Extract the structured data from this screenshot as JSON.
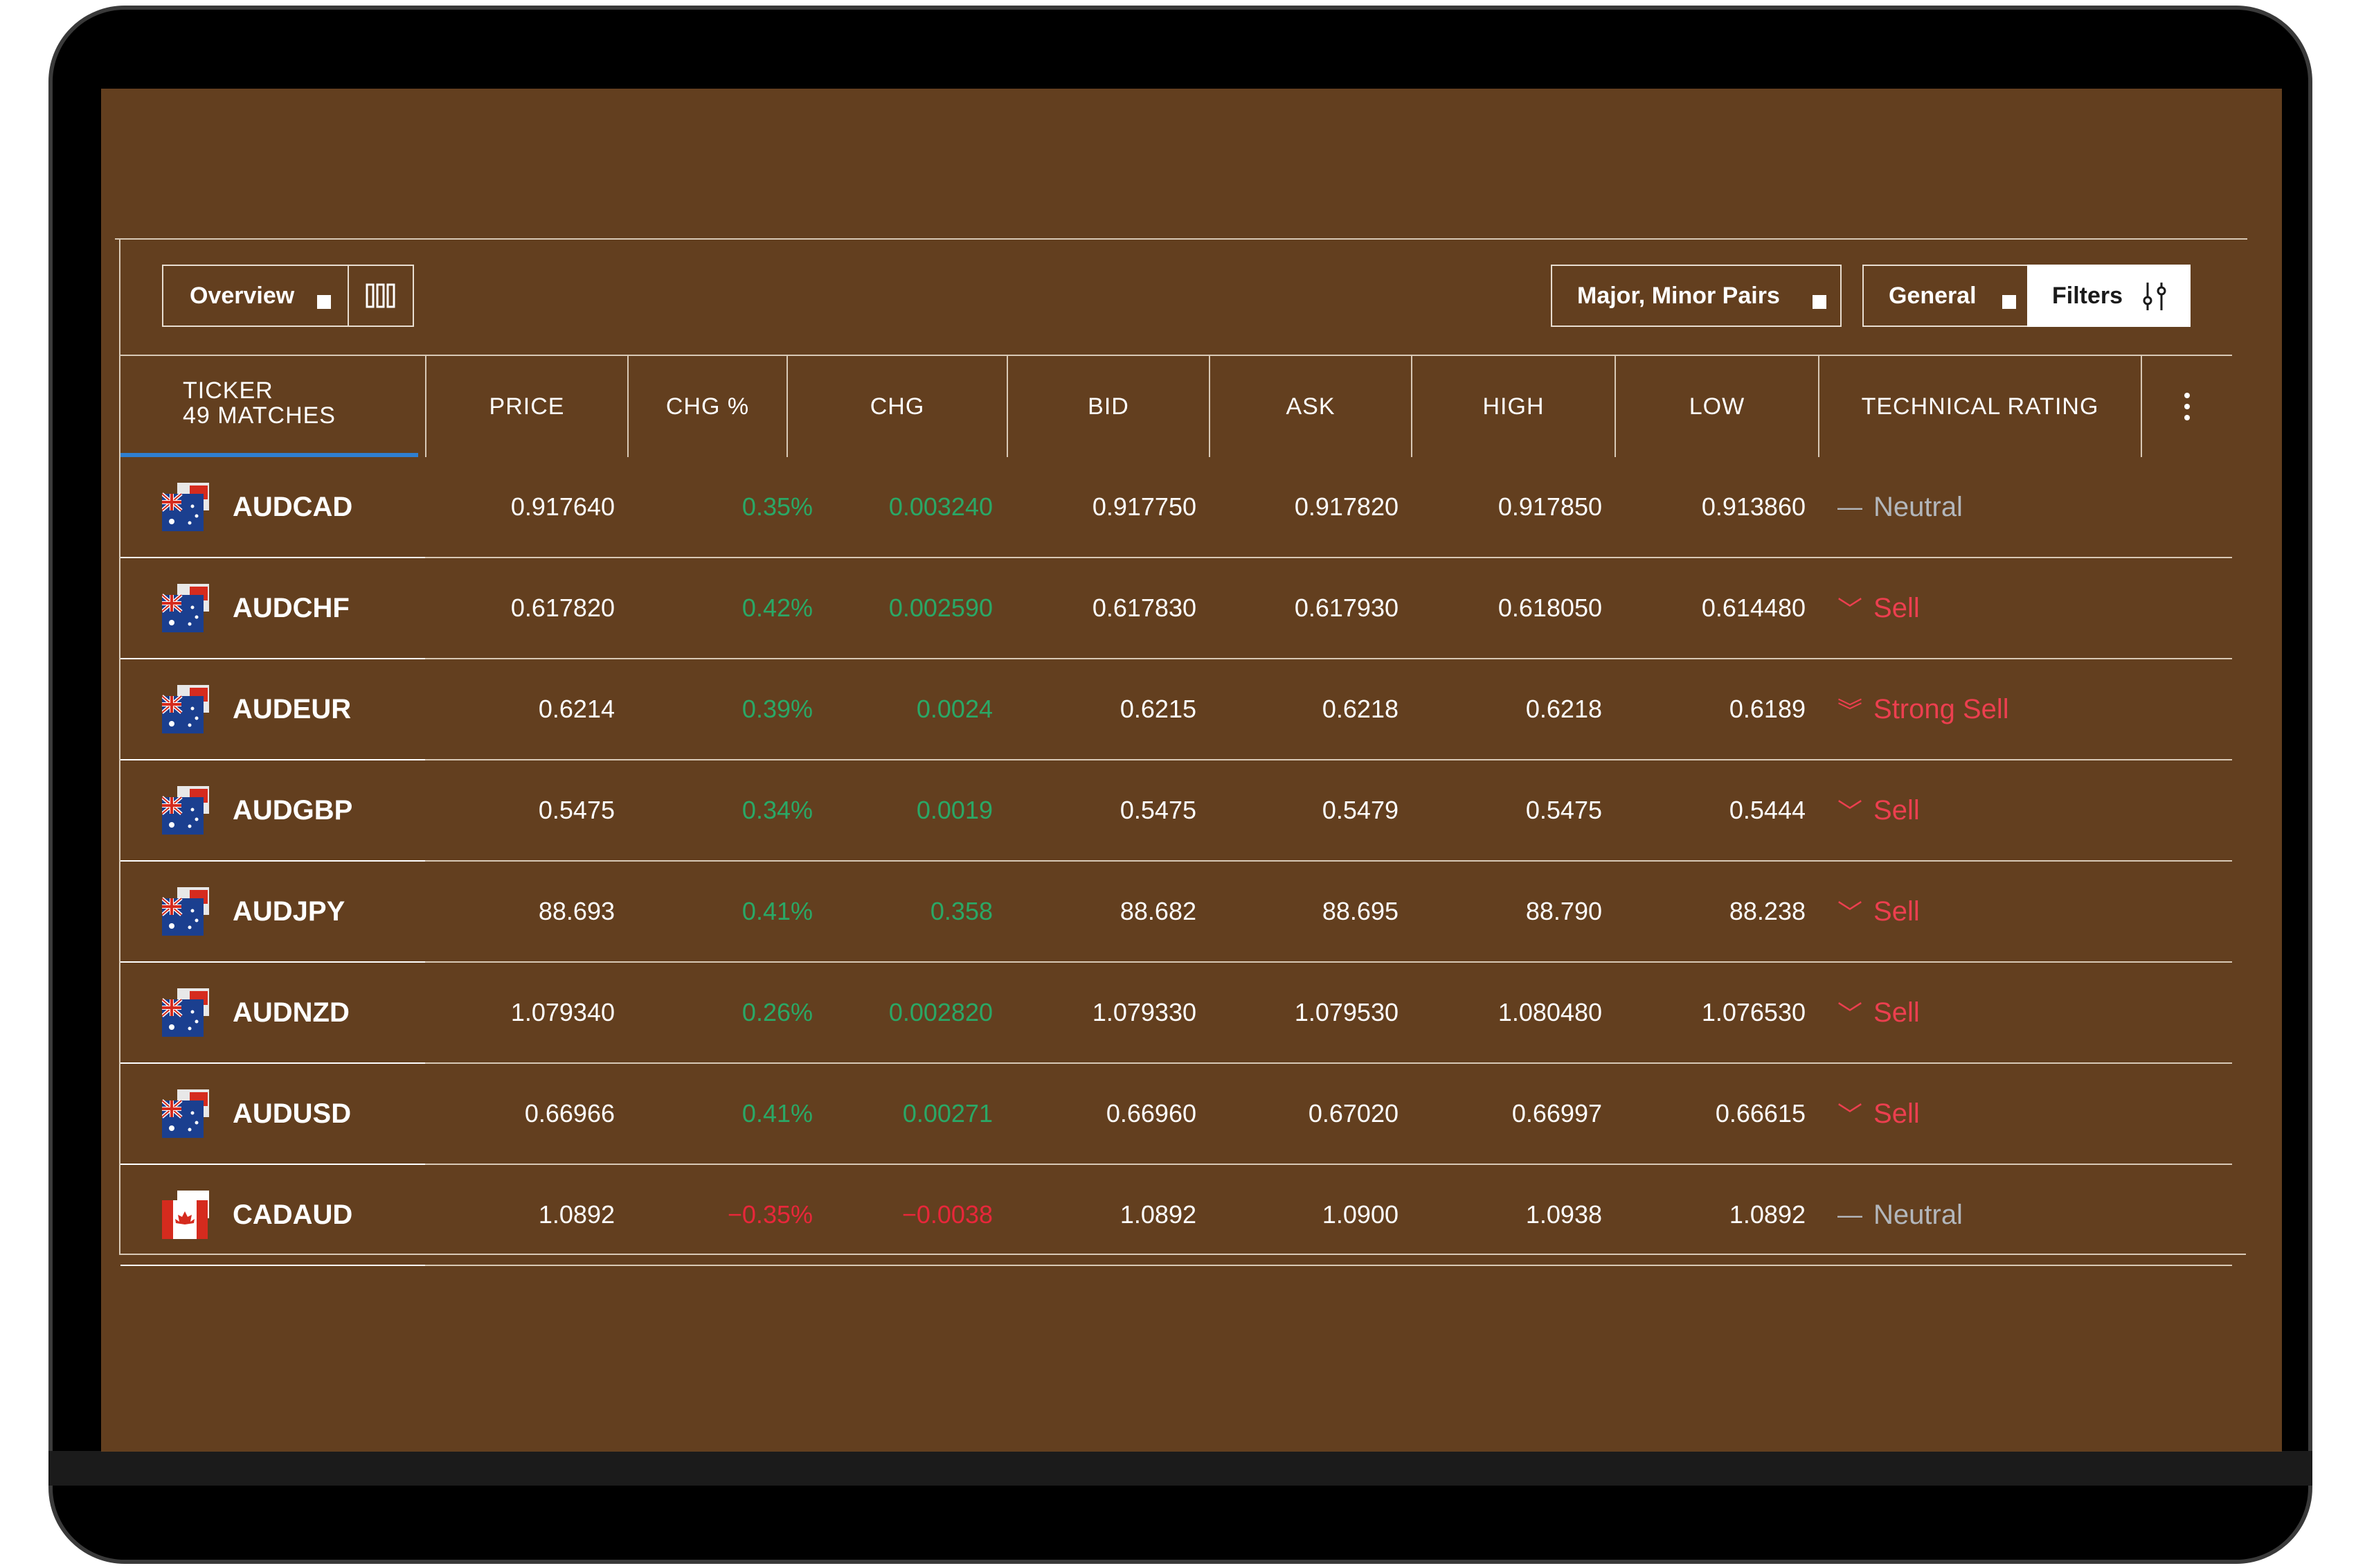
{
  "toolbar": {
    "overview_label": "Overview",
    "pairs_label": "Major,  Minor Pairs",
    "general_label": "General",
    "filters_label": "Filters"
  },
  "header": {
    "ticker": "TICKER",
    "matches": "49 MATCHES",
    "price": "PRICE",
    "chg_pct": "CHG %",
    "chg": "CHG",
    "bid": "BID",
    "ask": "ASK",
    "high": "HIGH",
    "low": "LOW",
    "rating": "TECHNICAL RATING"
  },
  "colors": {
    "background": "#633f1f",
    "positive": "#2aa866",
    "negative": "#e8273a",
    "sell": "#ec3f4f",
    "neutral": "#b3b7bc",
    "accent": "#2f7fd1"
  },
  "rows": [
    {
      "symbol": "AUDCAD",
      "price": "0.917640",
      "chg_pct": "0.35%",
      "chg": "0.003240",
      "bid": "0.917750",
      "ask": "0.917820",
      "high": "0.917850",
      "low": "0.913860",
      "rating": "Neutral",
      "rating_icon": "dash-icon",
      "dir": "pos"
    },
    {
      "symbol": "AUDCHF",
      "price": "0.617820",
      "chg_pct": "0.42%",
      "chg": "0.002590",
      "bid": "0.617830",
      "ask": "0.617930",
      "high": "0.618050",
      "low": "0.614480",
      "rating": "Sell",
      "rating_icon": "chevron-down-icon",
      "dir": "pos"
    },
    {
      "symbol": "AUDEUR",
      "price": "0.6214",
      "chg_pct": "0.39%",
      "chg": "0.0024",
      "bid": "0.6215",
      "ask": "0.6218",
      "high": "0.6218",
      "low": "0.6189",
      "rating": "Strong Sell",
      "rating_icon": "double-chevron-down-icon",
      "dir": "pos"
    },
    {
      "symbol": "AUDGBP",
      "price": "0.5475",
      "chg_pct": "0.34%",
      "chg": "0.0019",
      "bid": "0.5475",
      "ask": "0.5479",
      "high": "0.5475",
      "low": "0.5444",
      "rating": "Sell",
      "rating_icon": "chevron-down-icon",
      "dir": "pos"
    },
    {
      "symbol": "AUDJPY",
      "price": "88.693",
      "chg_pct": "0.41%",
      "chg": "0.358",
      "bid": "88.682",
      "ask": "88.695",
      "high": "88.790",
      "low": "88.238",
      "rating": "Sell",
      "rating_icon": "chevron-down-icon",
      "dir": "pos"
    },
    {
      "symbol": "AUDNZD",
      "price": "1.079340",
      "chg_pct": "0.26%",
      "chg": "0.002820",
      "bid": "1.079330",
      "ask": "1.079530",
      "high": "1.080480",
      "low": "1.076530",
      "rating": "Sell",
      "rating_icon": "chevron-down-icon",
      "dir": "pos"
    },
    {
      "symbol": "AUDUSD",
      "price": "0.66966",
      "chg_pct": "0.41%",
      "chg": "0.00271",
      "bid": "0.66960",
      "ask": "0.67020",
      "high": "0.66997",
      "low": "0.66615",
      "rating": "Sell",
      "rating_icon": "chevron-down-icon",
      "dir": "pos"
    },
    {
      "symbol": "CADAUD",
      "price": "1.0892",
      "chg_pct": "−0.35%",
      "chg": "−0.0038",
      "bid": "1.0892",
      "ask": "1.0900",
      "high": "1.0938",
      "low": "1.0892",
      "rating": "Neutral",
      "rating_icon": "dash-icon",
      "dir": "neg"
    }
  ]
}
